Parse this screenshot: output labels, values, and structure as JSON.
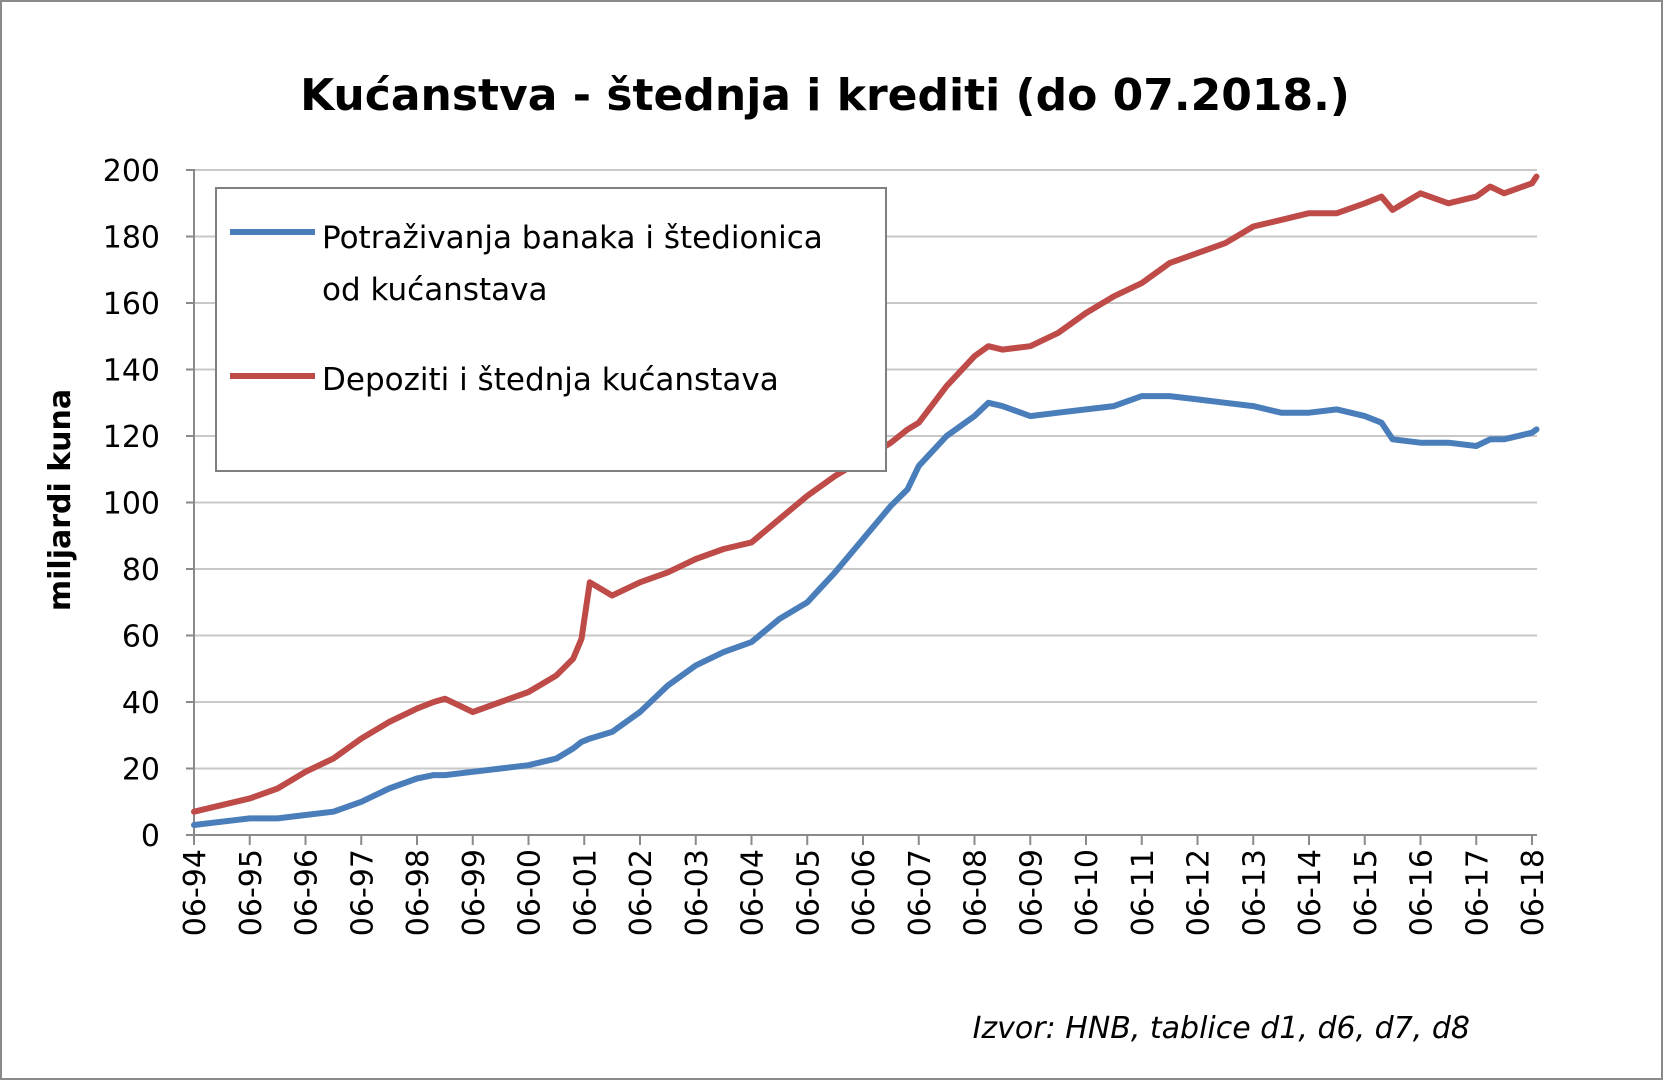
{
  "chart_data": {
    "type": "line",
    "title": "Kućanstva - štednja i krediti (do 07.2018.)",
    "ylabel": "miljardi kuna",
    "xlabel": "",
    "ylim": [
      0,
      200
    ],
    "yticks": [
      "0",
      "20",
      "40",
      "60",
      "80",
      "100",
      "120",
      "140",
      "160",
      "180",
      "200"
    ],
    "xticks": [
      "06-94",
      "06-95",
      "06-96",
      "06-97",
      "06-98",
      "06-99",
      "06-00",
      "06-01",
      "06-02",
      "06-03",
      "06-04",
      "06-05",
      "06-06",
      "06-07",
      "06-08",
      "06-09",
      "06-10",
      "06-11",
      "06-12",
      "06-13",
      "06-14",
      "06-15",
      "06-16",
      "06-17",
      "06-18"
    ],
    "x": [
      1994.5,
      1995.0,
      1995.5,
      1996.0,
      1996.5,
      1997.0,
      1997.5,
      1998.0,
      1998.5,
      1998.8,
      1999.0,
      1999.5,
      2000.0,
      2000.5,
      2001.0,
      2001.3,
      2001.45,
      2001.6,
      2002.0,
      2002.5,
      2003.0,
      2003.5,
      2004.0,
      2004.5,
      2005.0,
      2005.5,
      2006.0,
      2006.5,
      2007.0,
      2007.3,
      2007.5,
      2008.0,
      2008.5,
      2008.75,
      2009.0,
      2009.5,
      2010.0,
      2010.5,
      2011.0,
      2011.5,
      2012.0,
      2012.5,
      2013.0,
      2013.5,
      2014.0,
      2014.5,
      2015.0,
      2015.5,
      2015.8,
      2016.0,
      2016.5,
      2017.0,
      2017.5,
      2017.75,
      2018.0,
      2018.5,
      2018.58
    ],
    "series": [
      {
        "name": "Potraživanja banaka i štedionica od kućanstava",
        "color": "#4a7ebb",
        "values": [
          3,
          4,
          5,
          5,
          6,
          7,
          10,
          14,
          17,
          18,
          18,
          19,
          20,
          21,
          23,
          26,
          28,
          29,
          31,
          37,
          45,
          51,
          55,
          58,
          65,
          70,
          79,
          89,
          99,
          104,
          111,
          120,
          126,
          130,
          129,
          126,
          127,
          128,
          129,
          132,
          132,
          131,
          130,
          129,
          127,
          127,
          128,
          126,
          124,
          119,
          118,
          118,
          117,
          119,
          119,
          121,
          122
        ]
      },
      {
        "name": "Depoziti i štednja kućanstava",
        "color": "#be4b48",
        "values": [
          7,
          9,
          11,
          14,
          19,
          23,
          29,
          34,
          38,
          40,
          41,
          37,
          40,
          43,
          48,
          53,
          59,
          76,
          72,
          76,
          79,
          83,
          86,
          88,
          95,
          102,
          108,
          113,
          118,
          122,
          124,
          135,
          144,
          147,
          146,
          147,
          151,
          157,
          162,
          166,
          172,
          175,
          178,
          183,
          185,
          187,
          187,
          190,
          192,
          188,
          193,
          190,
          192,
          195,
          193,
          196,
          198
        ]
      }
    ],
    "grid": true,
    "legend_position": "top-left"
  },
  "source_note": "Izvor: HNB, tablice d1, d6, d7, d8"
}
